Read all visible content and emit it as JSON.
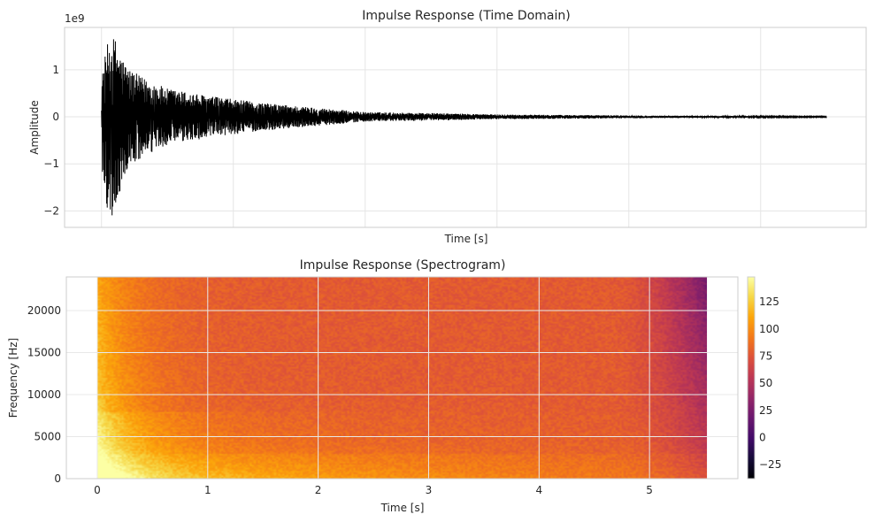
{
  "chart_data": [
    {
      "type": "line",
      "title": "Impulse Response (Time Domain)",
      "xlabel": "Time [s]",
      "ylabel": "Amplitude",
      "y_offset_label": "1e9",
      "ylim": [
        -2.35,
        1.9
      ],
      "xlim": [
        -0.28,
        5.8
      ],
      "x_gridlines": [
        0,
        1,
        2,
        3,
        4,
        5
      ],
      "xticks_visible": false,
      "yticks": [
        1,
        0,
        -1,
        -2
      ],
      "ytick_labels": [
        "1",
        "0",
        "−1",
        "−2"
      ],
      "grid": true,
      "series": [
        {
          "color": "#000000",
          "envelope": {
            "x": [
              0,
              0.02,
              0.05,
              0.1,
              0.15,
              0.2,
              0.3,
              0.5,
              0.8,
              1.2,
              1.6,
              2.0,
              2.5,
              3.0,
              3.5,
              4.0,
              4.5,
              5.0,
              5.5
            ],
            "y_max": [
              0.75,
              1.2,
              1.6,
              1.7,
              1.3,
              1.05,
              0.85,
              0.6,
              0.45,
              0.3,
              0.2,
              0.1,
              0.08,
              0.05,
              0.04,
              0.03,
              0.02,
              0.015,
              0.01
            ],
            "y_min": [
              -1.4,
              -1.5,
              -2.1,
              -2.15,
              -1.5,
              -1.1,
              -0.9,
              -0.6,
              -0.45,
              -0.3,
              -0.2,
              -0.1,
              -0.08,
              -0.05,
              -0.04,
              -0.03,
              -0.02,
              -0.015,
              -0.01
            ]
          }
        }
      ]
    },
    {
      "type": "heatmap",
      "title": "Impulse Response (Spectrogram)",
      "xlabel": "Time [s]",
      "ylabel": "Frequency [Hz]",
      "xlim": [
        -0.28,
        5.8
      ],
      "ylim": [
        0,
        24000
      ],
      "xticks": [
        0,
        1,
        2,
        3,
        4,
        5
      ],
      "yticks": [
        0,
        5000,
        10000,
        15000,
        20000
      ],
      "data_extent": {
        "x": [
          0,
          5.52
        ],
        "y": [
          0,
          24000
        ]
      },
      "grid": true,
      "colormap": "inferno",
      "colorbar": {
        "vmin": -38,
        "vmax": 148,
        "ticks": [
          -25,
          0,
          25,
          50,
          75,
          100,
          125
        ],
        "tick_labels": [
          "−25",
          "0",
          "25",
          "50",
          "75",
          "100",
          "125"
        ]
      },
      "level_model": {
        "base_db": 78,
        "early_boost_db": 50,
        "early_decay_s": 0.4,
        "low_freq_boost_db": 40,
        "low_freq_scale_hz": 3500,
        "band_edges_hz": [
          3000,
          8000
        ],
        "high_freq_late_fade_db": 55,
        "fade_start_s": 4.7
      }
    }
  ]
}
